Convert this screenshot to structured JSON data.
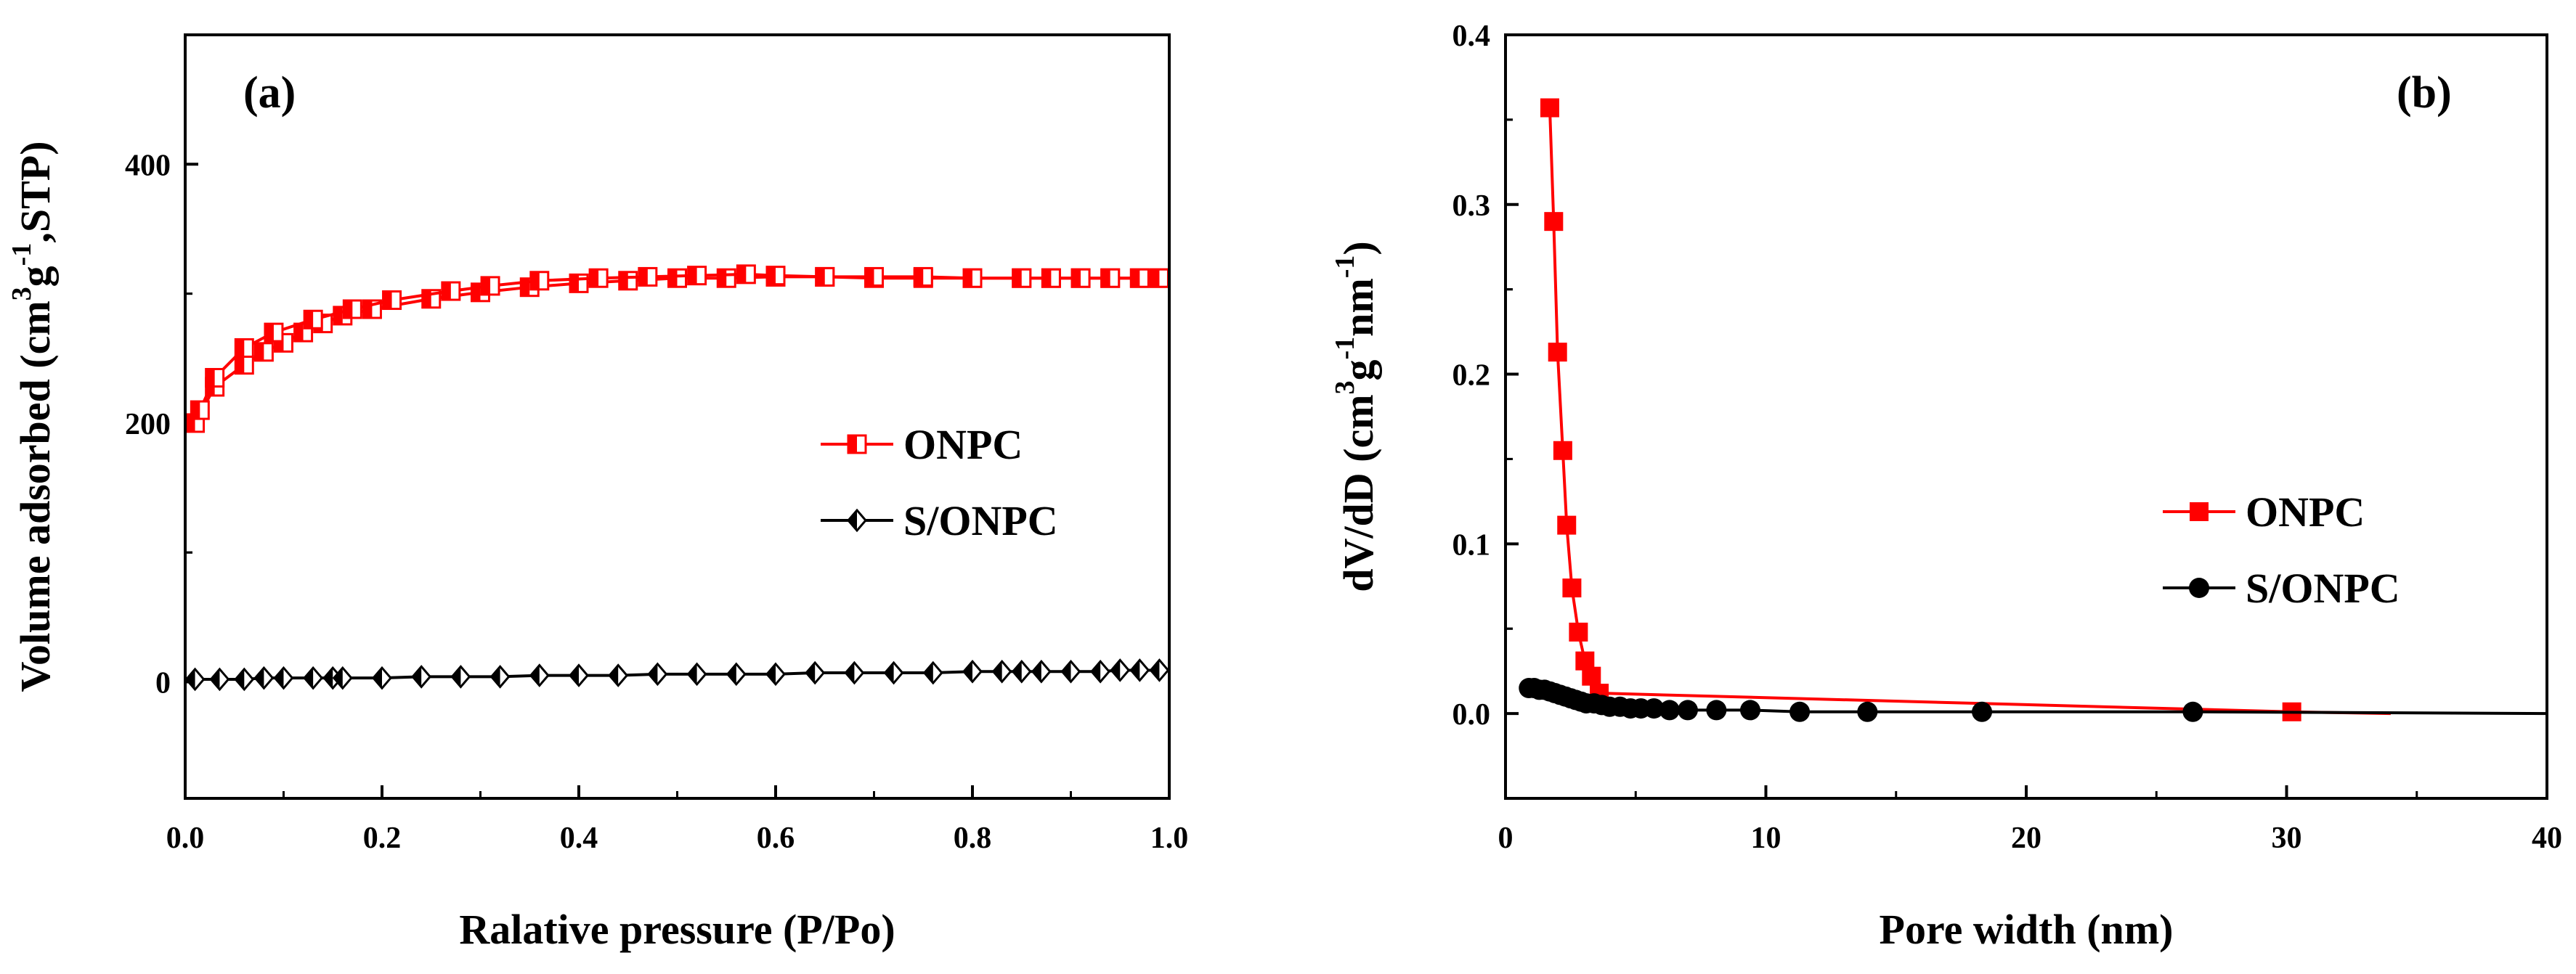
{
  "chart_data": [
    {
      "type": "line",
      "panel_label": "(a)",
      "title": "",
      "xlabel": "Ralative pressure (P/Po)",
      "ylabel": "Volume adsorbed (cm3g-1,STP)",
      "ylabel_parts": [
        "Volume adsorbed (cm",
        "3",
        "g",
        "-1",
        ",STP)"
      ],
      "xlim": [
        0.0,
        1.0
      ],
      "ylim": [
        -90,
        500
      ],
      "x_ticks": [
        0.0,
        0.2,
        0.4,
        0.6,
        0.8,
        1.0
      ],
      "x_tick_labels": [
        "0.0",
        "0.2",
        "0.4",
        "0.6",
        "0.8",
        "1.0"
      ],
      "y_ticks": [
        0,
        200,
        400
      ],
      "y_tick_labels": [
        "0",
        "200",
        "400"
      ],
      "legend_position": "center-right",
      "series": [
        {
          "name": "ONPC",
          "color": "#ff0000",
          "marker": "square-half-open",
          "branches": [
            {
              "x": [
                0.01,
                0.03,
                0.06,
                0.08,
                0.1,
                0.12,
                0.14,
                0.16,
                0.19,
                0.25,
                0.3,
                0.35,
                0.4,
                0.45,
                0.5,
                0.55,
                0.6,
                0.65,
                0.7,
                0.75,
                0.8,
                0.85,
                0.88,
                0.91,
                0.94,
                0.97,
                0.99
              ],
              "y": [
                200,
                228,
                245,
                255,
                262,
                270,
                277,
                283,
                288,
                296,
                301,
                305,
                308,
                310,
                312,
                312,
                313,
                313,
                312,
                312,
                312,
                312,
                312,
                312,
                312,
                312,
                312
              ]
            },
            {
              "x": [
                0.99,
                0.97,
                0.94,
                0.91,
                0.88,
                0.85,
                0.8,
                0.75,
                0.7,
                0.65,
                0.6,
                0.57,
                0.52,
                0.47,
                0.42,
                0.36,
                0.31,
                0.27,
                0.21,
                0.17,
                0.13,
                0.09,
                0.06,
                0.03,
                0.015
              ],
              "y": [
                312,
                312,
                312,
                312,
                312,
                312,
                312,
                313,
                313,
                313,
                314,
                315,
                314,
                313,
                312,
                310,
                306,
                302,
                295,
                288,
                280,
                270,
                258,
                235,
                210
              ]
            }
          ]
        },
        {
          "name": "S/ONPC",
          "color": "#000000",
          "marker": "diamond-half-filled",
          "x": [
            0.01,
            0.035,
            0.06,
            0.08,
            0.1,
            0.13,
            0.15,
            0.16,
            0.2,
            0.24,
            0.28,
            0.32,
            0.36,
            0.4,
            0.44,
            0.48,
            0.52,
            0.56,
            0.6,
            0.64,
            0.68,
            0.72,
            0.76,
            0.8,
            0.83,
            0.85,
            0.87,
            0.9,
            0.93,
            0.95,
            0.97,
            0.99
          ],
          "y": [
            2,
            2,
            2,
            3,
            3,
            3,
            3,
            3,
            3,
            4,
            4,
            4,
            5,
            5,
            5,
            6,
            6,
            6,
            6,
            7,
            7,
            7,
            7,
            8,
            8,
            8,
            8,
            8,
            8,
            9,
            9,
            9
          ]
        }
      ]
    },
    {
      "type": "line",
      "panel_label": "(b)",
      "title": "",
      "xlabel": "Pore width (nm)",
      "ylabel": "dV/dD (cm3g-1nm-1)",
      "ylabel_parts": [
        "dV/dD (cm",
        "3",
        "g",
        "-1",
        "nm",
        "-1",
        ")"
      ],
      "xlim": [
        0,
        40
      ],
      "ylim": [
        -0.05,
        0.4
      ],
      "x_ticks": [
        0,
        10,
        20,
        30,
        40
      ],
      "x_tick_labels": [
        "0",
        "10",
        "20",
        "30",
        "40"
      ],
      "y_ticks": [
        0.0,
        0.1,
        0.2,
        0.3,
        0.4
      ],
      "y_tick_labels": [
        "0.0",
        "0.1",
        "0.2",
        "0.3",
        "0.4"
      ],
      "legend_position": "center-right",
      "series": [
        {
          "name": "ONPC",
          "color": "#ff0000",
          "marker": "square-filled",
          "x": [
            1.7,
            1.85,
            2.0,
            2.2,
            2.35,
            2.55,
            2.8,
            3.05,
            3.3,
            3.6,
            30.2
          ],
          "y": [
            0.357,
            0.29,
            0.213,
            0.155,
            0.111,
            0.074,
            0.048,
            0.031,
            0.022,
            0.012,
            0.001
          ],
          "line_extends_to": [
            34,
            0.0
          ]
        },
        {
          "name": "S/ONPC",
          "color": "#000000",
          "marker": "circle-filled",
          "x": [
            0.9,
            1.1,
            1.3,
            1.5,
            1.7,
            1.9,
            2.1,
            2.3,
            2.5,
            2.7,
            2.9,
            3.1,
            3.4,
            3.7,
            4.0,
            4.4,
            4.8,
            5.2,
            5.7,
            6.3,
            7.0,
            8.1,
            9.4,
            11.3,
            13.9,
            18.3,
            26.4
          ],
          "y": [
            0.015,
            0.015,
            0.014,
            0.014,
            0.013,
            0.012,
            0.011,
            0.01,
            0.009,
            0.008,
            0.007,
            0.006,
            0.006,
            0.005,
            0.004,
            0.004,
            0.003,
            0.003,
            0.003,
            0.002,
            0.002,
            0.002,
            0.002,
            0.001,
            0.001,
            0.001,
            0.001
          ],
          "line_extends_to": [
            40,
            0.0
          ]
        }
      ]
    }
  ]
}
